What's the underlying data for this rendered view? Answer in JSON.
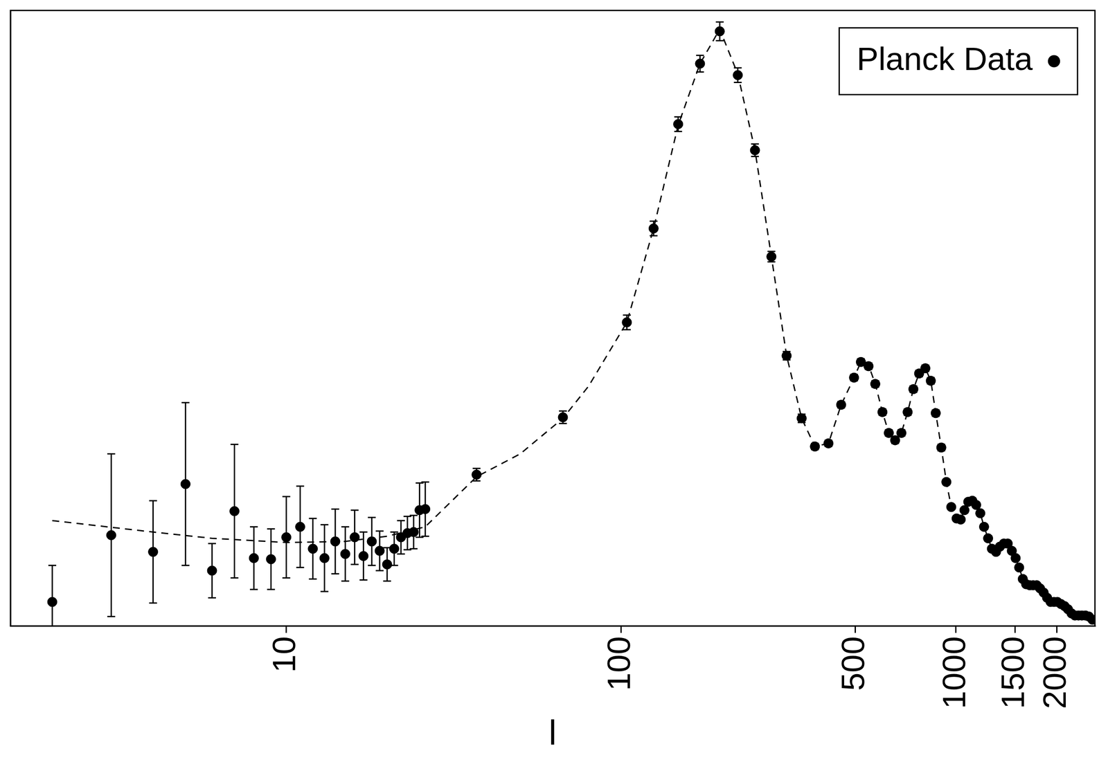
{
  "chart_data": {
    "type": "scatter",
    "xlabel": "l",
    "log": "x",
    "xlim": [
      1.5,
      2600
    ],
    "xticks": [
      10,
      100,
      500,
      1000,
      1500,
      2000
    ],
    "ylim": [
      0,
      5900
    ],
    "tick_labels": "x",
    "grid": false,
    "legend": "top-right",
    "series": [
      {
        "name": "Planck Data",
        "type": "scatter",
        "marker": "circle",
        "color": "#000000",
        "x": [
          2,
          3,
          4,
          5,
          6,
          7,
          8,
          9,
          10,
          11,
          12,
          13,
          14,
          15,
          16,
          17,
          18,
          19,
          20,
          21,
          22,
          23,
          24,
          25,
          26,
          37,
          67,
          104,
          125,
          148,
          172,
          197,
          223,
          251,
          281,
          312,
          346,
          379,
          416,
          454,
          496,
          520,
          548,
          574,
          603,
          630,
          658,
          687,
          717,
          746,
          776,
          810,
          841,
          870,
          904,
          936,
          968,
          1004,
          1033,
          1060,
          1088,
          1119,
          1149,
          1182,
          1213,
          1247,
          1280,
          1317,
          1352,
          1390,
          1427,
          1468,
          1507,
          1544,
          1583,
          1620,
          1661,
          1700,
          1742,
          1782,
          1827,
          1871,
          1917,
          1962,
          2008,
          2058,
          2110,
          2160,
          2214,
          2266,
          2322,
          2376,
          2436,
          2494,
          2556
        ],
        "values": [
          230,
          870,
          710,
          1360,
          530,
          1100,
          650,
          640,
          850,
          950,
          740,
          650,
          810,
          690,
          850,
          670,
          810,
          720,
          590,
          740,
          850,
          890,
          900,
          1110,
          1120,
          1450,
          2000,
          2910,
          3810,
          4810,
          5390,
          5700,
          5280,
          4560,
          3540,
          2590,
          1990,
          1720,
          1750,
          2120,
          2380,
          2530,
          2490,
          2320,
          2050,
          1850,
          1780,
          1850,
          2050,
          2270,
          2420,
          2470,
          2350,
          2040,
          1710,
          1380,
          1140,
          1030,
          1020,
          1110,
          1190,
          1200,
          1160,
          1080,
          950,
          840,
          740,
          710,
          760,
          790,
          790,
          720,
          650,
          560,
          450,
          400,
          390,
          390,
          390,
          360,
          320,
          270,
          230,
          230,
          230,
          210,
          190,
          160,
          120,
          100,
          100,
          100,
          100,
          90,
          60
        ],
        "errors": [
          350,
          780,
          490,
          780,
          260,
          640,
          300,
          290,
          390,
          390,
          290,
          320,
          310,
          260,
          260,
          230,
          230,
          190,
          160,
          160,
          160,
          160,
          160,
          260,
          260,
          60,
          60,
          70,
          70,
          70,
          80,
          90,
          70,
          60,
          50,
          40,
          40,
          30,
          30,
          30,
          30,
          30,
          30,
          30,
          30,
          30,
          30,
          30,
          30,
          30,
          30,
          30,
          30,
          30,
          30,
          25,
          25,
          25,
          25,
          25,
          25,
          25,
          25,
          25,
          25,
          25,
          25,
          25,
          25,
          25,
          25,
          25,
          25,
          25,
          25,
          20,
          20,
          20,
          20,
          20,
          20,
          20,
          20,
          20,
          20,
          20,
          20,
          20,
          20,
          20,
          20,
          20,
          20,
          20,
          20
        ]
      },
      {
        "type": "line",
        "line_style": "dashed",
        "color": "#000000",
        "x": [
          2,
          4,
          6,
          10,
          15,
          20,
          26,
          37,
          50,
          67,
          80,
          104,
          125,
          148,
          172,
          197,
          223,
          251,
          281,
          312,
          346,
          379,
          416,
          454,
          496,
          520,
          548,
          574,
          603,
          630,
          658,
          687,
          717,
          746,
          776,
          810,
          841,
          870,
          904,
          936,
          968,
          1004,
          1033,
          1060,
          1088,
          1119,
          1149,
          1182,
          1213,
          1247,
          1280,
          1317,
          1352,
          1390,
          1427,
          1468,
          1507,
          1544,
          1583,
          1620,
          1661,
          1700,
          1742,
          1782,
          1827,
          1871,
          1917,
          1962,
          2008,
          2058,
          2110,
          2160,
          2214,
          2266,
          2322,
          2376,
          2436,
          2494,
          2556,
          2600
        ],
        "values": [
          1010,
          900,
          840,
          800,
          810,
          860,
          950,
          1430,
          1650,
          1990,
          2300,
          2910,
          3810,
          4800,
          5390,
          5720,
          5290,
          4560,
          3540,
          2590,
          1990,
          1720,
          1750,
          2120,
          2380,
          2530,
          2500,
          2320,
          2050,
          1850,
          1780,
          1850,
          2050,
          2270,
          2420,
          2470,
          2350,
          2040,
          1710,
          1380,
          1140,
          1030,
          1020,
          1110,
          1190,
          1200,
          1160,
          1080,
          950,
          840,
          740,
          710,
          760,
          790,
          790,
          720,
          650,
          560,
          450,
          400,
          390,
          390,
          390,
          360,
          320,
          270,
          230,
          230,
          230,
          210,
          190,
          160,
          120,
          100,
          100,
          100,
          100,
          90,
          60,
          50
        ]
      }
    ]
  }
}
